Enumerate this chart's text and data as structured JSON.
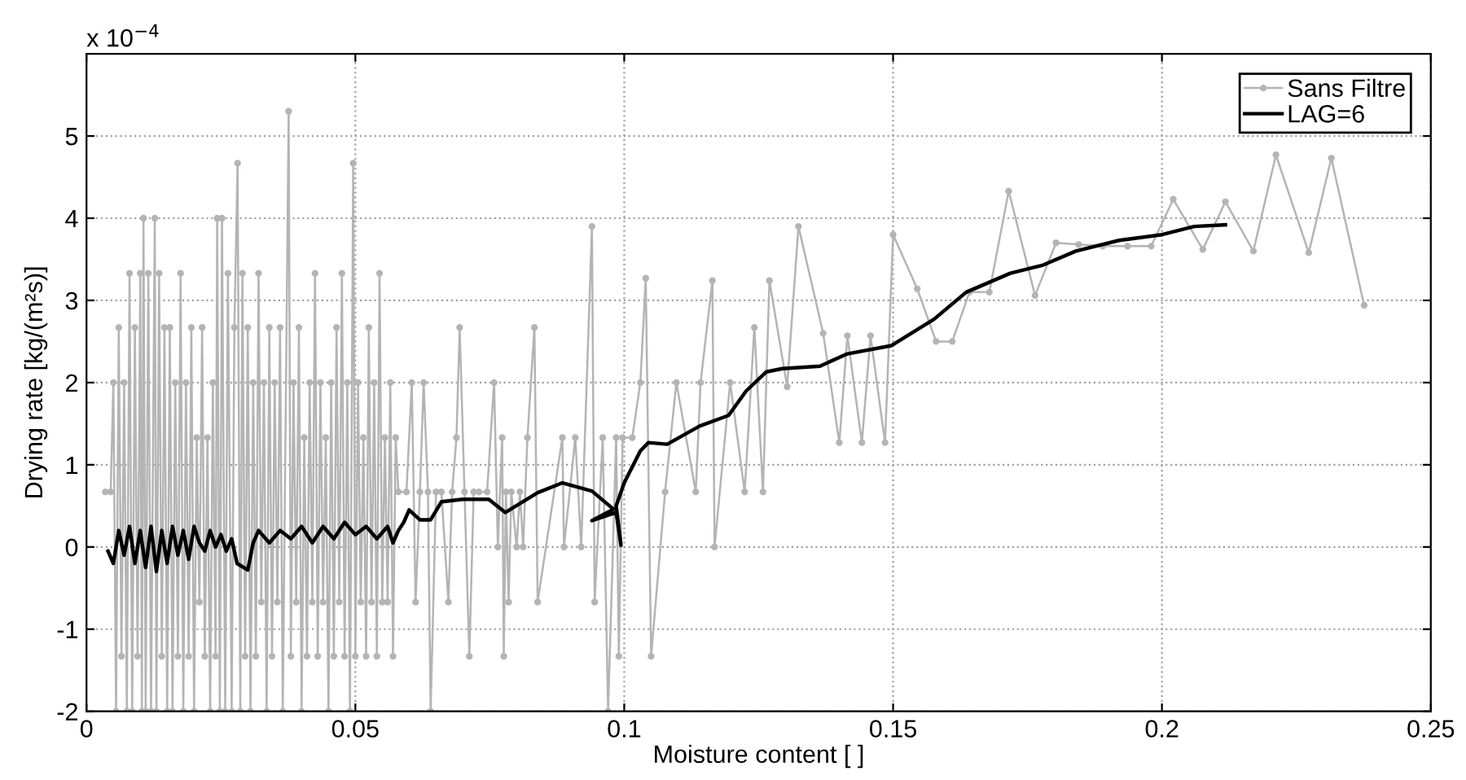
{
  "chart_data": {
    "type": "line",
    "xlabel": "Moisture content [ ]",
    "ylabel": "Drying rate [kg/(m²s)]",
    "annotations": [
      "x 10$^{−4}$"
    ],
    "xlim": [
      0,
      0.25
    ],
    "xticks": [
      0,
      0.05,
      0.1,
      0.15,
      0.2,
      0.25
    ],
    "ylim": [
      -2,
      6
    ],
    "yticks": [
      -2,
      -1,
      0,
      1,
      2,
      3,
      4,
      5
    ],
    "grid": true,
    "legend": "top right",
    "line_style": "solid",
    "series": [
      {
        "name": "Sans Filtre",
        "color": "#b4b4b4",
        "marker": "circle",
        "x": [
          0.0035,
          0.0045,
          0.005,
          0.0055,
          0.006,
          0.0065,
          0.007,
          0.0075,
          0.008,
          0.0085,
          0.009,
          0.0095,
          0.01,
          0.0103,
          0.0106,
          0.011,
          0.0115,
          0.012,
          0.0127,
          0.013,
          0.0135,
          0.014,
          0.0145,
          0.015,
          0.0155,
          0.016,
          0.0165,
          0.017,
          0.0175,
          0.018,
          0.0185,
          0.019,
          0.0195,
          0.02,
          0.0205,
          0.021,
          0.0215,
          0.022,
          0.0225,
          0.023,
          0.0235,
          0.024,
          0.0243,
          0.0248,
          0.0252,
          0.0258,
          0.0263,
          0.027,
          0.0275,
          0.0281,
          0.0286,
          0.029,
          0.0295,
          0.03,
          0.0305,
          0.031,
          0.0315,
          0.032,
          0.0325,
          0.033,
          0.0335,
          0.034,
          0.0345,
          0.035,
          0.0355,
          0.036,
          0.0365,
          0.0376,
          0.038,
          0.0385,
          0.039,
          0.0395,
          0.04,
          0.0405,
          0.041,
          0.0415,
          0.042,
          0.0425,
          0.043,
          0.0435,
          0.044,
          0.0445,
          0.045,
          0.0455,
          0.046,
          0.0465,
          0.047,
          0.0475,
          0.048,
          0.0485,
          0.049,
          0.0496,
          0.05,
          0.0505,
          0.051,
          0.0515,
          0.052,
          0.0525,
          0.053,
          0.0535,
          0.054,
          0.0545,
          0.055,
          0.0555,
          0.056,
          0.0565,
          0.057,
          0.0575,
          0.058,
          0.0595,
          0.0605,
          0.0612,
          0.062,
          0.0627,
          0.0635,
          0.064,
          0.065,
          0.066,
          0.0673,
          0.068,
          0.0688,
          0.0694,
          0.0703,
          0.0712,
          0.072,
          0.073,
          0.0745,
          0.0758,
          0.0765,
          0.0773,
          0.0776,
          0.078,
          0.0785,
          0.079,
          0.08,
          0.0806,
          0.0812,
          0.082,
          0.0833,
          0.0839,
          0.0885,
          0.0888,
          0.0909,
          0.092,
          0.094,
          0.0945,
          0.096,
          0.097,
          0.0985,
          0.099,
          0.0997,
          0.1015,
          0.103,
          0.104,
          0.105,
          0.1076,
          0.1097,
          0.1133,
          0.1142,
          0.1164,
          0.1168,
          0.1197,
          0.1224,
          0.1242,
          0.1258,
          0.127,
          0.1303,
          0.1324,
          0.137,
          0.14,
          0.1415,
          0.1442,
          0.1458,
          0.1485,
          0.15,
          0.1545,
          0.158,
          0.161,
          0.1642,
          0.1679,
          0.1715,
          0.1764,
          0.1803,
          0.1845,
          0.189,
          0.1936,
          0.198,
          0.2021,
          0.2076,
          0.2118,
          0.217,
          0.2212,
          0.2273,
          0.2315,
          0.2376
        ],
        "values": [
          0.67,
          0.67,
          2.0,
          -2,
          2.67,
          -1.33,
          2.0,
          -2,
          3.33,
          -2,
          2.67,
          -1.33,
          3.33,
          -2,
          4.0,
          -2,
          3.33,
          -2,
          4.0,
          -2,
          3.33,
          -1.33,
          2.67,
          -2,
          2.67,
          -2,
          2.0,
          -1.33,
          3.33,
          -2,
          2.0,
          -1.33,
          2.67,
          -2,
          1.33,
          -0.67,
          2.67,
          -1.33,
          1.33,
          -2,
          2.0,
          -1.33,
          4.0,
          -2,
          4.0,
          -2,
          3.33,
          -2,
          2.67,
          4.67,
          -2,
          3.33,
          -1.33,
          2.67,
          -2,
          2.0,
          -1.33,
          3.33,
          -0.67,
          2.0,
          -2,
          2.67,
          -1.33,
          2.0,
          -0.67,
          2.67,
          -2,
          5.3,
          -1.33,
          2.0,
          -0.67,
          2.67,
          -2,
          1.33,
          -1.33,
          2.0,
          -0.67,
          3.33,
          -1.33,
          2.0,
          -0.67,
          1.33,
          -2,
          2.0,
          -1.33,
          2.67,
          -0.67,
          3.33,
          -1.33,
          2.0,
          -2,
          4.67,
          -1.33,
          2.0,
          -0.67,
          1.33,
          -1.33,
          2.67,
          -0.67,
          2.0,
          -1.33,
          3.33,
          -0.67,
          1.33,
          -0.67,
          2.0,
          -1.33,
          1.33,
          0.67,
          0.67,
          2.0,
          -0.67,
          0.67,
          2.0,
          0.67,
          -2,
          0.67,
          0.67,
          -0.67,
          0.67,
          1.33,
          2.67,
          0.67,
          -1.33,
          0.67,
          0.67,
          0.67,
          2.0,
          0.0,
          1.33,
          -1.33,
          0.67,
          -0.67,
          0.67,
          0.0,
          0.67,
          0.0,
          1.33,
          2.67,
          -0.67,
          1.33,
          0.0,
          1.33,
          0.0,
          3.9,
          -0.67,
          1.33,
          -2,
          1.33,
          -1.33,
          1.33,
          1.33,
          2.0,
          3.27,
          -1.33,
          0.67,
          2.0,
          0.67,
          2.0,
          3.24,
          0.0,
          2.0,
          0.67,
          2.67,
          0.67,
          3.24,
          1.95,
          3.9,
          2.6,
          1.27,
          2.57,
          1.27,
          2.57,
          1.27,
          3.8,
          3.14,
          2.5,
          2.5,
          3.1,
          3.1,
          4.33,
          3.06,
          3.7,
          3.68,
          3.66,
          3.66,
          3.66,
          4.23,
          3.62,
          4.2,
          3.6,
          4.77,
          3.58,
          4.73,
          2.94
        ]
      },
      {
        "name": "LAG=6",
        "color": "#000000",
        "marker": "none",
        "x": [
          0.004,
          0.005,
          0.006,
          0.007,
          0.008,
          0.009,
          0.01,
          0.011,
          0.012,
          0.013,
          0.014,
          0.015,
          0.016,
          0.017,
          0.018,
          0.019,
          0.02,
          0.021,
          0.022,
          0.023,
          0.024,
          0.025,
          0.026,
          0.027,
          0.028,
          0.03,
          0.031,
          0.032,
          0.034,
          0.036,
          0.038,
          0.04,
          0.042,
          0.044,
          0.046,
          0.048,
          0.05,
          0.052,
          0.054,
          0.056,
          0.057,
          0.058,
          0.059,
          0.06,
          0.062,
          0.064,
          0.066,
          0.07,
          0.0748,
          0.0779,
          0.0839,
          0.0885,
          0.094,
          0.098,
          0.094,
          0.0985,
          0.0994,
          0.0985,
          0.1,
          0.103,
          0.1045,
          0.108,
          0.114,
          0.1194,
          0.1227,
          0.1264,
          0.1294,
          0.1364,
          0.1415,
          0.1497,
          0.1576,
          0.1636,
          0.1718,
          0.1779,
          0.184,
          0.192,
          0.2,
          0.206,
          0.2118
        ],
        "values": [
          -0.05,
          -0.2,
          0.2,
          -0.1,
          0.25,
          -0.2,
          0.2,
          -0.25,
          0.25,
          -0.3,
          0.2,
          -0.2,
          0.25,
          -0.1,
          0.2,
          -0.15,
          0.25,
          0.05,
          -0.05,
          0.2,
          0.0,
          0.15,
          -0.05,
          0.1,
          -0.2,
          -0.28,
          0.05,
          0.2,
          0.05,
          0.2,
          0.1,
          0.25,
          0.05,
          0.25,
          0.1,
          0.3,
          0.15,
          0.25,
          0.1,
          0.25,
          0.05,
          0.2,
          0.3,
          0.45,
          0.33,
          0.33,
          0.55,
          0.58,
          0.58,
          0.42,
          0.66,
          0.78,
          0.68,
          0.46,
          0.32,
          0.42,
          0.02,
          0.5,
          0.78,
          1.17,
          1.27,
          1.25,
          1.47,
          1.6,
          1.9,
          2.13,
          2.17,
          2.2,
          2.35,
          2.45,
          2.77,
          3.1,
          3.33,
          3.43,
          3.6,
          3.73,
          3.8,
          3.9,
          3.92
        ]
      }
    ]
  }
}
